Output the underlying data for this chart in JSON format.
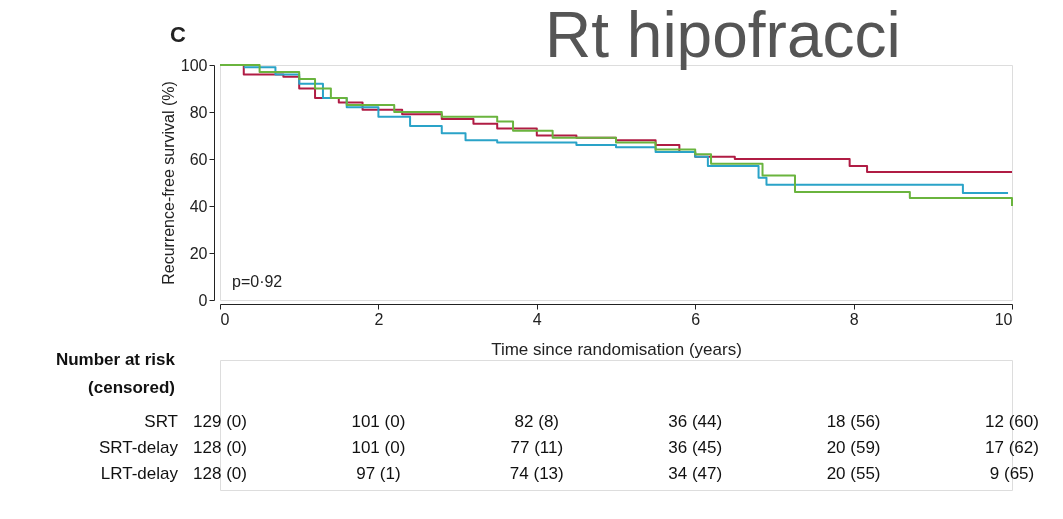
{
  "chart_data": {
    "type": "step",
    "title": "Rt hipofracci",
    "xlabel": "Time since randomisation (years)",
    "ylabel": "Recurrence-free survival (%)",
    "xlim": [
      0,
      10
    ],
    "ylim": [
      0,
      100
    ],
    "xticks": [
      0,
      2,
      4,
      6,
      8,
      10
    ],
    "yticks": [
      0,
      20,
      40,
      60,
      80,
      100
    ],
    "grid": false,
    "line_style": "solid",
    "marker": "none",
    "series": [
      {
        "color": "#b01c44",
        "x": [
          0,
          0.1,
          0.3,
          0.8,
          1.0,
          1.2,
          1.5,
          1.8,
          2.3,
          2.8,
          3.2,
          3.5,
          4.0,
          4.5,
          5.0,
          5.5,
          5.8,
          6.0,
          6.5,
          7.95,
          8.17,
          10.0
        ],
        "values": [
          100,
          100,
          96,
          95,
          90,
          86,
          84,
          81,
          79,
          77,
          75,
          73,
          70,
          69,
          68,
          66,
          63,
          61,
          60,
          57,
          54.5,
          54.5
        ]
      },
      {
        "color": "#2aa3c8",
        "x": [
          0.3,
          0.7,
          1.0,
          1.3,
          1.6,
          2.0,
          2.4,
          2.8,
          3.1,
          3.5,
          4.5,
          5.0,
          5.5,
          6.0,
          6.16,
          6.8,
          6.9,
          9.38,
          9.95
        ],
        "values": [
          99,
          96,
          92,
          86,
          82,
          78,
          74,
          71,
          68,
          67,
          66,
          65,
          63,
          61,
          57,
          52,
          49,
          45.5,
          45.5
        ]
      },
      {
        "color": "#6ab43e",
        "x": [
          0,
          0.1,
          0.5,
          1.0,
          1.2,
          1.4,
          1.6,
          2.2,
          2.8,
          3.5,
          3.7,
          4.2,
          5.0,
          5.5,
          6.0,
          6.2,
          6.85,
          7.26,
          8.71,
          10.0,
          10.0
        ],
        "values": [
          100,
          100,
          97,
          94,
          90,
          86,
          83,
          80,
          78,
          76,
          72,
          69,
          67,
          64,
          62,
          58,
          53,
          46,
          43.4,
          43.4,
          40
        ]
      }
    ],
    "annotations": [
      "C",
      "p=0·92",
      "Number at risk",
      "(censored)",
      "SRT",
      "129 (0)",
      "101 (0)",
      "82  (8)",
      "36 (44)",
      "18 (56)",
      "12 (60)",
      "SRT-delay",
      "128 (0)",
      "101 (0)",
      "77 (11)",
      "36 (45)",
      "20 (59)",
      "17 (62)",
      "LRT-delay",
      "128 (0)",
      "97 (1)",
      "74 (13)",
      "34 (47)",
      "20 (55)",
      "9 (65)"
    ]
  }
}
